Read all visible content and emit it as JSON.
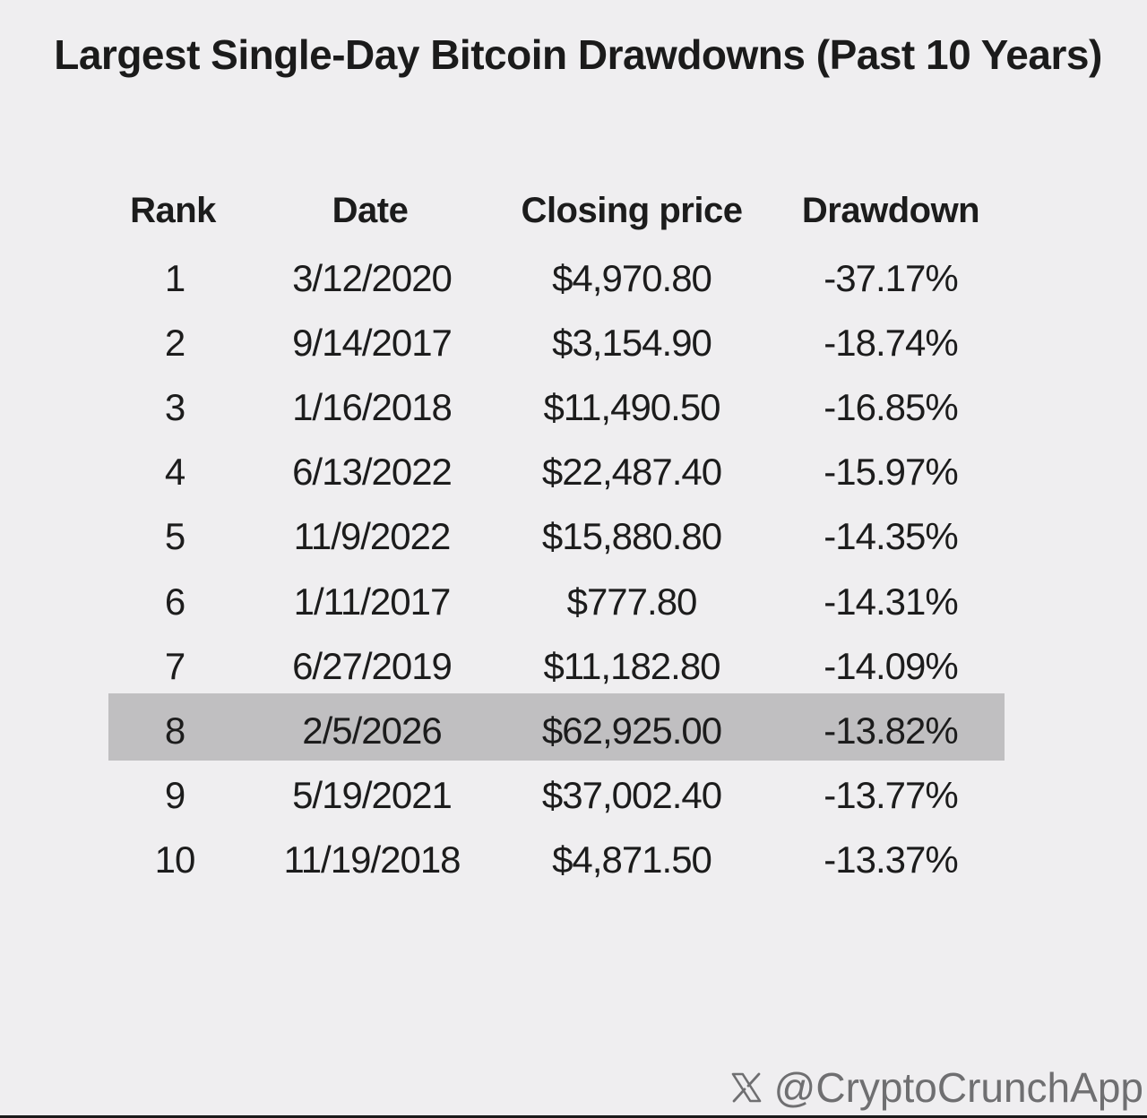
{
  "chart_data": {
    "type": "table",
    "title": "Largest Single-Day Bitcoin Drawdowns (Past 10 Years)",
    "columns": [
      "Rank",
      "Date",
      "Closing price",
      "Drawdown"
    ],
    "rows": [
      [
        "1",
        "3/12/2020",
        "$4,970.80",
        "-37.17%"
      ],
      [
        "2",
        "9/14/2017",
        "$3,154.90",
        "-18.74%"
      ],
      [
        "3",
        "1/16/2018",
        "$11,490.50",
        "-16.85%"
      ],
      [
        "4",
        "6/13/2022",
        "$22,487.40",
        "-15.97%"
      ],
      [
        "5",
        "11/9/2022",
        "$15,880.80",
        "-14.35%"
      ],
      [
        "6",
        "1/11/2017",
        "$777.80",
        "-14.31%"
      ],
      [
        "7",
        "6/27/2019",
        "$11,182.80",
        "-14.09%"
      ],
      [
        "8",
        "2/5/2026",
        "$62,925.00",
        "-13.82%"
      ],
      [
        "9",
        "5/19/2021",
        "$37,002.40",
        "-13.77%"
      ],
      [
        "10",
        "11/19/2018",
        "$4,871.50",
        "-13.37%"
      ]
    ],
    "highlighted_rank": "8",
    "highlight_color": "#c0bfc1"
  },
  "credit": {
    "icon": "x-logo-icon",
    "handle": "@CryptoCrunchApp"
  },
  "colors": {
    "background": "#efeef0",
    "text": "#1c1c1c",
    "credit_text": "#6f6f71"
  }
}
